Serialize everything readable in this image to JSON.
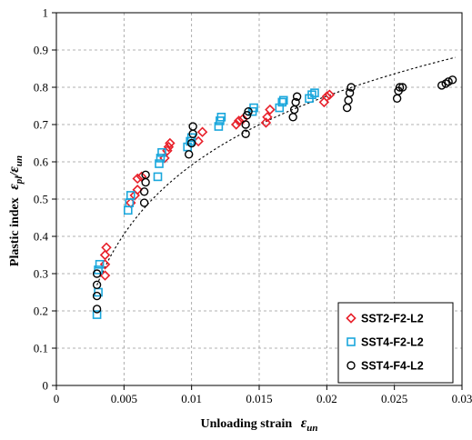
{
  "chart_data": {
    "type": "scatter",
    "title": "",
    "xlabel": "Unloading strain",
    "xlabel_symbol": "ε",
    "xlabel_sub": "un",
    "ylabel": "Plastic index",
    "ylabel_symbol_num": "ε",
    "ylabel_sub_num": "pl",
    "ylabel_slash": "/",
    "ylabel_symbol_den": "ε",
    "ylabel_sub_den": "un",
    "xlim": [
      0,
      0.03
    ],
    "ylim": [
      0,
      1
    ],
    "x_ticks": [
      0,
      0.005,
      0.01,
      0.015,
      0.02,
      0.025,
      0.03
    ],
    "x_tick_labels": [
      "0",
      "0.005",
      "0.01",
      "0.015",
      "0.02",
      "0.025",
      "0.03"
    ],
    "y_ticks": [
      0,
      0.1,
      0.2,
      0.3,
      0.4,
      0.5,
      0.6,
      0.7,
      0.8,
      0.9,
      1
    ],
    "y_tick_labels": [
      "0",
      "0.1",
      "0.2",
      "0.3",
      "0.4",
      "0.5",
      "0.6",
      "0.7",
      "0.8",
      "0.9",
      "1"
    ],
    "grid": "dashed",
    "legend_position": "bottom-right",
    "series": [
      {
        "name": "SST2-F2-L2",
        "marker": "diamond",
        "color": "#e8202a",
        "points": [
          [
            0.0036,
            0.295
          ],
          [
            0.0036,
            0.325
          ],
          [
            0.0036,
            0.35
          ],
          [
            0.0037,
            0.37
          ],
          [
            0.0055,
            0.49
          ],
          [
            0.0058,
            0.51
          ],
          [
            0.006,
            0.525
          ],
          [
            0.006,
            0.555
          ],
          [
            0.0063,
            0.56
          ],
          [
            0.008,
            0.61
          ],
          [
            0.0082,
            0.63
          ],
          [
            0.0083,
            0.64
          ],
          [
            0.0084,
            0.65
          ],
          [
            0.0105,
            0.655
          ],
          [
            0.0108,
            0.68
          ],
          [
            0.0133,
            0.7
          ],
          [
            0.0135,
            0.71
          ],
          [
            0.0138,
            0.715
          ],
          [
            0.0155,
            0.705
          ],
          [
            0.0156,
            0.72
          ],
          [
            0.0158,
            0.74
          ],
          [
            0.0198,
            0.76
          ],
          [
            0.02,
            0.775
          ],
          [
            0.0202,
            0.78
          ]
        ]
      },
      {
        "name": "SST4-F2-L2",
        "marker": "square",
        "color": "#1aa7dc",
        "points": [
          [
            0.003,
            0.19
          ],
          [
            0.0031,
            0.25
          ],
          [
            0.0031,
            0.31
          ],
          [
            0.0032,
            0.325
          ],
          [
            0.0053,
            0.47
          ],
          [
            0.0054,
            0.49
          ],
          [
            0.0055,
            0.51
          ],
          [
            0.0075,
            0.56
          ],
          [
            0.0076,
            0.595
          ],
          [
            0.0077,
            0.61
          ],
          [
            0.0078,
            0.625
          ],
          [
            0.0097,
            0.64
          ],
          [
            0.0099,
            0.655
          ],
          [
            0.01,
            0.665
          ],
          [
            0.012,
            0.695
          ],
          [
            0.0121,
            0.71
          ],
          [
            0.0122,
            0.72
          ],
          [
            0.0145,
            0.735
          ],
          [
            0.0146,
            0.745
          ],
          [
            0.0165,
            0.745
          ],
          [
            0.0167,
            0.76
          ],
          [
            0.0168,
            0.765
          ],
          [
            0.0187,
            0.77
          ],
          [
            0.0189,
            0.78
          ],
          [
            0.0191,
            0.785
          ]
        ]
      },
      {
        "name": "SST4-F4-L2",
        "marker": "circle",
        "color": "#000000",
        "points": [
          [
            0.003,
            0.205
          ],
          [
            0.003,
            0.24
          ],
          [
            0.003,
            0.27
          ],
          [
            0.003,
            0.3
          ],
          [
            0.0065,
            0.49
          ],
          [
            0.0065,
            0.52
          ],
          [
            0.0066,
            0.545
          ],
          [
            0.0066,
            0.565
          ],
          [
            0.0098,
            0.62
          ],
          [
            0.01,
            0.65
          ],
          [
            0.0101,
            0.675
          ],
          [
            0.0101,
            0.695
          ],
          [
            0.014,
            0.675
          ],
          [
            0.014,
            0.7
          ],
          [
            0.0141,
            0.725
          ],
          [
            0.0142,
            0.735
          ],
          [
            0.0175,
            0.72
          ],
          [
            0.0176,
            0.74
          ],
          [
            0.0177,
            0.76
          ],
          [
            0.0178,
            0.775
          ],
          [
            0.0215,
            0.745
          ],
          [
            0.0216,
            0.765
          ],
          [
            0.0217,
            0.785
          ],
          [
            0.0218,
            0.8
          ],
          [
            0.0252,
            0.77
          ],
          [
            0.0253,
            0.79
          ],
          [
            0.0254,
            0.8
          ],
          [
            0.0256,
            0.8
          ],
          [
            0.0285,
            0.805
          ],
          [
            0.0288,
            0.81
          ],
          [
            0.029,
            0.815
          ],
          [
            0.0293,
            0.82
          ]
        ]
      }
    ],
    "fit_curve": {
      "style": "dotted",
      "color": "#000000",
      "equation_form": "y = a + b*ln(x)",
      "a": 1.822,
      "b": 0.2673,
      "x_range": [
        0.003,
        0.0295
      ]
    }
  }
}
